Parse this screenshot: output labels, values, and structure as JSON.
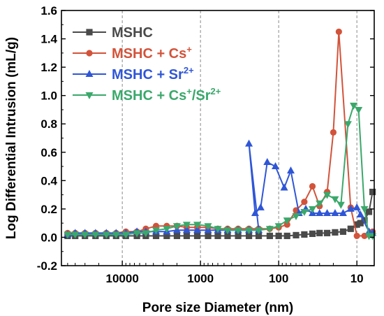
{
  "chart_data": {
    "type": "line",
    "xlabel": "Pore size Diameter (nm)",
    "ylabel": "Log Differential Intrusion (mL/g)",
    "x_scale": "log",
    "x_reversed": true,
    "xlim": [
      60000,
      6
    ],
    "ylim": [
      -0.2,
      1.6
    ],
    "x_ticks": [
      {
        "value": 10000,
        "label": "10000"
      },
      {
        "value": 1000,
        "label": "1000"
      },
      {
        "value": 100,
        "label": "100"
      },
      {
        "value": 10,
        "label": "10"
      }
    ],
    "y_ticks": [
      {
        "value": -0.2,
        "label": "-0.2"
      },
      {
        "value": 0.0,
        "label": "0.0"
      },
      {
        "value": 0.2,
        "label": "0.2"
      },
      {
        "value": 0.4,
        "label": "0.4"
      },
      {
        "value": 0.6,
        "label": "0.6"
      },
      {
        "value": 0.8,
        "label": "0.8"
      },
      {
        "value": 1.0,
        "label": "1.0"
      },
      {
        "value": 1.2,
        "label": "1.2"
      },
      {
        "value": 1.4,
        "label": "1.4"
      },
      {
        "value": 1.6,
        "label": "1.6"
      }
    ],
    "vertical_reference_lines": [
      10000,
      1000,
      100,
      10
    ],
    "grid": false,
    "legend_position": "top-left",
    "series": [
      {
        "name_main": "MSHC",
        "name_sup": "",
        "name_tail": "",
        "name_tail_sup": "",
        "color": "#4a4a4a",
        "marker": "square",
        "points": [
          [
            50000,
            0.01
          ],
          [
            40000,
            0.01
          ],
          [
            30000,
            0.01
          ],
          [
            22000,
            0.01
          ],
          [
            16000,
            0.01
          ],
          [
            12000,
            0.01
          ],
          [
            9000,
            0.01
          ],
          [
            6500,
            0.01
          ],
          [
            5000,
            0.01
          ],
          [
            3700,
            0.01
          ],
          [
            2700,
            0.01
          ],
          [
            2000,
            0.01
          ],
          [
            1500,
            0.01
          ],
          [
            1100,
            0.01
          ],
          [
            800,
            0.01
          ],
          [
            600,
            0.01
          ],
          [
            450,
            0.01
          ],
          [
            330,
            0.01
          ],
          [
            240,
            0.01
          ],
          [
            180,
            0.01
          ],
          [
            130,
            0.01
          ],
          [
            100,
            0.01
          ],
          [
            78,
            0.01
          ],
          [
            60,
            0.015
          ],
          [
            47,
            0.02
          ],
          [
            37,
            0.025
          ],
          [
            30,
            0.03
          ],
          [
            24,
            0.03
          ],
          [
            19,
            0.035
          ],
          [
            15,
            0.04
          ],
          [
            12,
            0.06
          ],
          [
            10,
            0.09
          ],
          [
            9,
            0.1
          ],
          [
            8,
            0.12
          ],
          [
            7,
            0.18
          ],
          [
            6.3,
            0.32
          ]
        ]
      },
      {
        "name_main": "MSHC + Cs",
        "name_sup": "+",
        "name_tail": "",
        "name_tail_sup": "",
        "color": "#d2533a",
        "marker": "circle",
        "points": [
          [
            50000,
            0.03
          ],
          [
            40000,
            0.03
          ],
          [
            30000,
            0.03
          ],
          [
            22000,
            0.03
          ],
          [
            16000,
            0.03
          ],
          [
            12000,
            0.03
          ],
          [
            9000,
            0.04
          ],
          [
            6500,
            0.04
          ],
          [
            5000,
            0.06
          ],
          [
            3700,
            0.08
          ],
          [
            2700,
            0.08
          ],
          [
            2000,
            0.08
          ],
          [
            1500,
            0.07
          ],
          [
            1100,
            0.07
          ],
          [
            800,
            0.07
          ],
          [
            600,
            0.06
          ],
          [
            450,
            0.06
          ],
          [
            330,
            0.06
          ],
          [
            240,
            0.06
          ],
          [
            180,
            0.06
          ],
          [
            130,
            0.06
          ],
          [
            100,
            0.07
          ],
          [
            78,
            0.09
          ],
          [
            60,
            0.19
          ],
          [
            47,
            0.25
          ],
          [
            37,
            0.36
          ],
          [
            30,
            0.22
          ],
          [
            24,
            0.32
          ],
          [
            20,
            0.74
          ],
          [
            17,
            1.45
          ],
          [
            12,
            0.21
          ],
          [
            10,
            0.01
          ],
          [
            8,
            0.01
          ],
          [
            6.3,
            0.04
          ]
        ]
      },
      {
        "name_main": "MSHC + Sr",
        "name_sup": "2+",
        "name_tail": "",
        "name_tail_sup": "",
        "color": "#2f56d6",
        "marker": "triangle-up",
        "points": [
          [
            50000,
            0.02
          ],
          [
            40000,
            0.03
          ],
          [
            30000,
            0.03
          ],
          [
            22000,
            0.03
          ],
          [
            16000,
            0.03
          ],
          [
            12000,
            0.03
          ],
          [
            9000,
            0.03
          ],
          [
            6500,
            0.04
          ],
          [
            5000,
            0.04
          ],
          [
            3700,
            0.04
          ],
          [
            2700,
            0.04
          ],
          [
            2000,
            0.05
          ],
          [
            1500,
            0.05
          ],
          [
            1100,
            0.05
          ],
          [
            800,
            0.05
          ],
          [
            600,
            0.05
          ],
          [
            450,
            0.05
          ],
          [
            330,
            0.05
          ],
          [
            240,
            0.05
          ],
          [
            180,
            0.05
          ],
          [
            240,
            0.66
          ],
          [
            200,
            0.17
          ],
          [
            170,
            0.21
          ],
          [
            140,
            0.53
          ],
          [
            110,
            0.5
          ],
          [
            85,
            0.35
          ],
          [
            70,
            0.47
          ],
          [
            55,
            0.17
          ],
          [
            45,
            0.2
          ],
          [
            37,
            0.17
          ],
          [
            30,
            0.17
          ],
          [
            24,
            0.17
          ],
          [
            19,
            0.17
          ],
          [
            15,
            0.17
          ],
          [
            12,
            0.2
          ],
          [
            10,
            0.21
          ],
          [
            9,
            0.16
          ],
          [
            7,
            0.04
          ],
          [
            6.3,
            0.03
          ]
        ]
      },
      {
        "name_main": "MSHC + Cs",
        "name_sup": "+",
        "name_tail": "/Sr",
        "name_tail_sup": "2+",
        "color": "#3aa86b",
        "marker": "triangle-down",
        "points": [
          [
            50000,
            0.02
          ],
          [
            40000,
            0.02
          ],
          [
            30000,
            0.02
          ],
          [
            22000,
            0.02
          ],
          [
            16000,
            0.02
          ],
          [
            12000,
            0.02
          ],
          [
            9000,
            0.02
          ],
          [
            6500,
            0.03
          ],
          [
            5000,
            0.03
          ],
          [
            3700,
            0.05
          ],
          [
            2700,
            0.06
          ],
          [
            2000,
            0.08
          ],
          [
            1500,
            0.09
          ],
          [
            1100,
            0.09
          ],
          [
            800,
            0.08
          ],
          [
            600,
            0.06
          ],
          [
            450,
            0.05
          ],
          [
            330,
            0.05
          ],
          [
            240,
            0.05
          ],
          [
            180,
            0.05
          ],
          [
            130,
            0.06
          ],
          [
            100,
            0.08
          ],
          [
            78,
            0.12
          ],
          [
            60,
            0.15
          ],
          [
            47,
            0.18
          ],
          [
            37,
            0.2
          ],
          [
            30,
            0.24
          ],
          [
            24,
            0.3
          ],
          [
            19,
            0.27
          ],
          [
            16,
            0.23
          ],
          [
            13,
            0.8
          ],
          [
            11,
            0.93
          ],
          [
            9.5,
            0.9
          ],
          [
            8,
            0.2
          ],
          [
            7,
            0.01
          ],
          [
            6.3,
            0.01
          ]
        ]
      }
    ]
  }
}
